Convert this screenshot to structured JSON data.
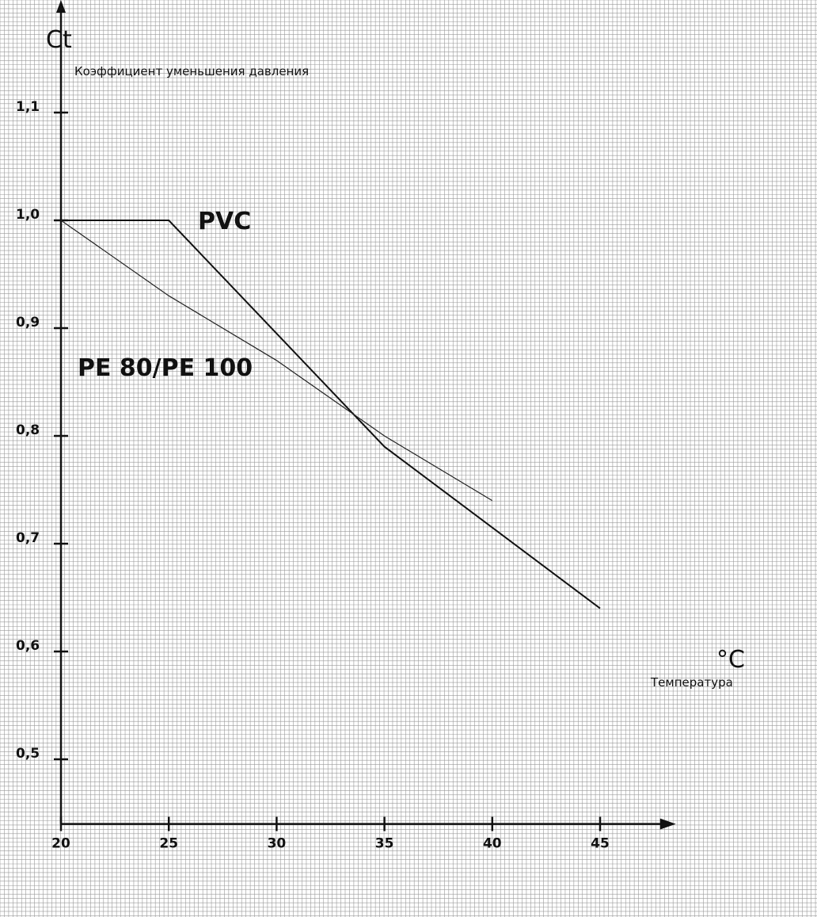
{
  "chart_data": {
    "type": "line",
    "ylabel_symbol": "Ct",
    "ylabel": "Коэффициент уменьшения давления",
    "xlabel_symbol": "°C",
    "xlabel": "Температура",
    "xticks": [
      "20",
      "25",
      "30",
      "35",
      "40",
      "45"
    ],
    "yticks": [
      "0,5",
      "0,6",
      "0,7",
      "0,8",
      "0,9",
      "1,0",
      "1,1"
    ],
    "xlim": [
      20,
      48
    ],
    "ylim": [
      0.44,
      1.2
    ],
    "grid": true,
    "series": [
      {
        "name": "PVC",
        "stroke": "#111111",
        "x": [
          20,
          25,
          30,
          35,
          45
        ],
        "y": [
          1.0,
          1.0,
          0.895,
          0.79,
          0.64
        ]
      },
      {
        "name": "PE 80/PE 100",
        "stroke": "#222222",
        "x": [
          20,
          25,
          30,
          35,
          40
        ],
        "y": [
          1.0,
          0.93,
          0.87,
          0.8,
          0.74
        ]
      }
    ],
    "colors": {
      "grid": "#9a9a9a",
      "axis": "#111111",
      "background": "#ffffff"
    }
  }
}
